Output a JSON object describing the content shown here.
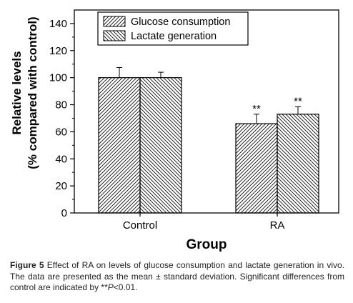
{
  "chart_data": {
    "type": "bar",
    "categories": [
      "Control",
      "RA"
    ],
    "series": [
      {
        "name": "Glucose consumption",
        "values": [
          100,
          66
        ],
        "errors": [
          7.5,
          7
        ],
        "pattern": "hatch-right"
      },
      {
        "name": "Lactate generation",
        "values": [
          100,
          73
        ],
        "errors": [
          4,
          5.5
        ],
        "pattern": "hatch-left"
      }
    ],
    "significance": [
      {
        "category": "RA",
        "series": "Glucose consumption",
        "label": "**"
      },
      {
        "category": "RA",
        "series": "Lactate generation",
        "label": "**"
      }
    ],
    "xlabel": "Group",
    "ylabel_line1": "Relative levels",
    "ylabel_line2": "(% compared with control)",
    "ylim": [
      0,
      150
    ],
    "yticks": [
      0,
      20,
      40,
      60,
      80,
      100,
      120,
      140
    ],
    "grid": false,
    "legend_position": "top-center"
  },
  "caption": {
    "figure_label": "Figure 5",
    "text_part1": " Effect of RA on levels of glucose consumption and lactate generation in vivo. The data are presented as the mean ± standard deviation. Significant differences from control are indicated by ",
    "stars": "**",
    "p_symbol": "P",
    "text_part2": "<0.01."
  }
}
